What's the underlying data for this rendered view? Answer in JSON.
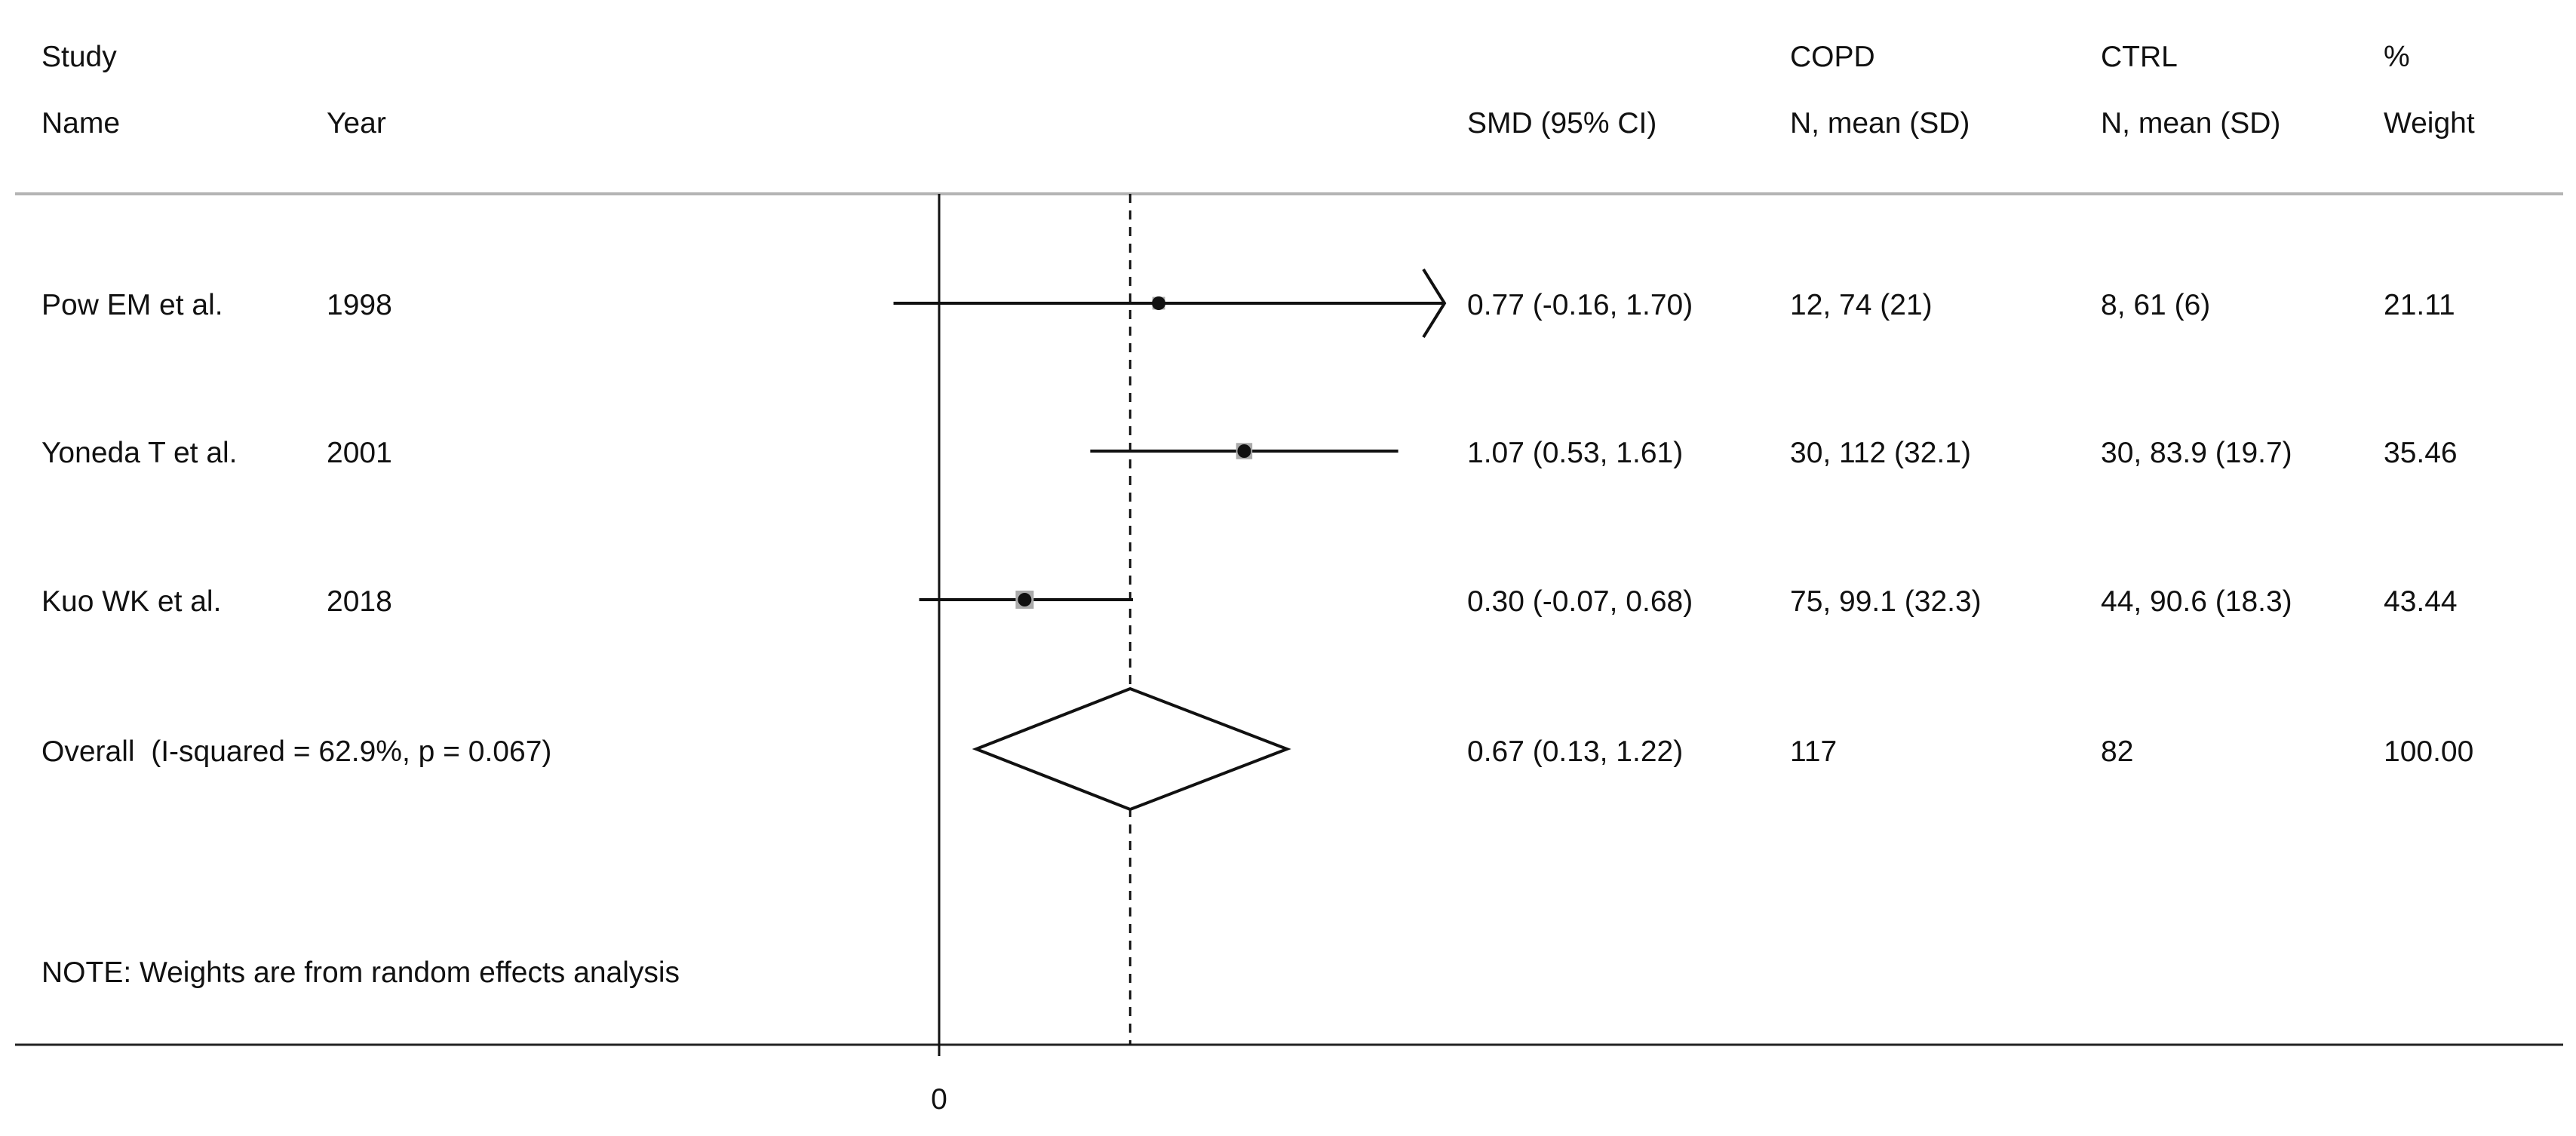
{
  "chart_data": {
    "type": "forest",
    "columns": {
      "study_name": [
        "Study",
        "Name"
      ],
      "year": [
        "",
        "Year"
      ],
      "smd": [
        "",
        "SMD (95% CI)"
      ],
      "copd": [
        "COPD",
        "N, mean (SD)"
      ],
      "ctrl": [
        "CTRL",
        "N, mean (SD)"
      ],
      "weight": [
        "%",
        "Weight"
      ]
    },
    "studies": [
      {
        "name": "Pow EM et al.",
        "year": "1998",
        "smd": 0.77,
        "ci_low": -0.16,
        "ci_high": 1.7,
        "smd_text": "0.77 (-0.16, 1.70)",
        "copd_text": "12, 74 (21)",
        "ctrl_text": "8, 61 (6)",
        "weight": 21.11,
        "weight_text": "21.11",
        "ci_truncated_right": true
      },
      {
        "name": "Yoneda T et al.",
        "year": "2001",
        "smd": 1.07,
        "ci_low": 0.53,
        "ci_high": 1.61,
        "smd_text": "1.07 (0.53, 1.61)",
        "copd_text": "30, 112 (32.1)",
        "ctrl_text": "30, 83.9 (19.7)",
        "weight": 35.46,
        "weight_text": "35.46",
        "ci_truncated_right": false
      },
      {
        "name": "Kuo WK et al.",
        "year": "2018",
        "smd": 0.3,
        "ci_low": -0.07,
        "ci_high": 0.68,
        "smd_text": "0.30 (-0.07, 0.68)",
        "copd_text": "75, 99.1 (32.3)",
        "ctrl_text": "44, 90.6 (18.3)",
        "weight": 43.44,
        "weight_text": "43.44",
        "ci_truncated_right": false
      }
    ],
    "overall": {
      "label": "Overall  (I-squared = 62.9%, p = 0.067)",
      "smd": 0.67,
      "ci_low": 0.13,
      "ci_high": 1.22,
      "smd_text": "0.67 (0.13, 1.22)",
      "copd_text": "117",
      "ctrl_text": "82",
      "weight_text": "100.00"
    },
    "note": "NOTE: Weights are from random effects analysis",
    "x_ticks": [
      0
    ],
    "x_tick_labels": [
      "0"
    ],
    "null_line": 0,
    "overall_line": 0.67,
    "xlim": [
      -0.07,
      0.85
    ]
  }
}
